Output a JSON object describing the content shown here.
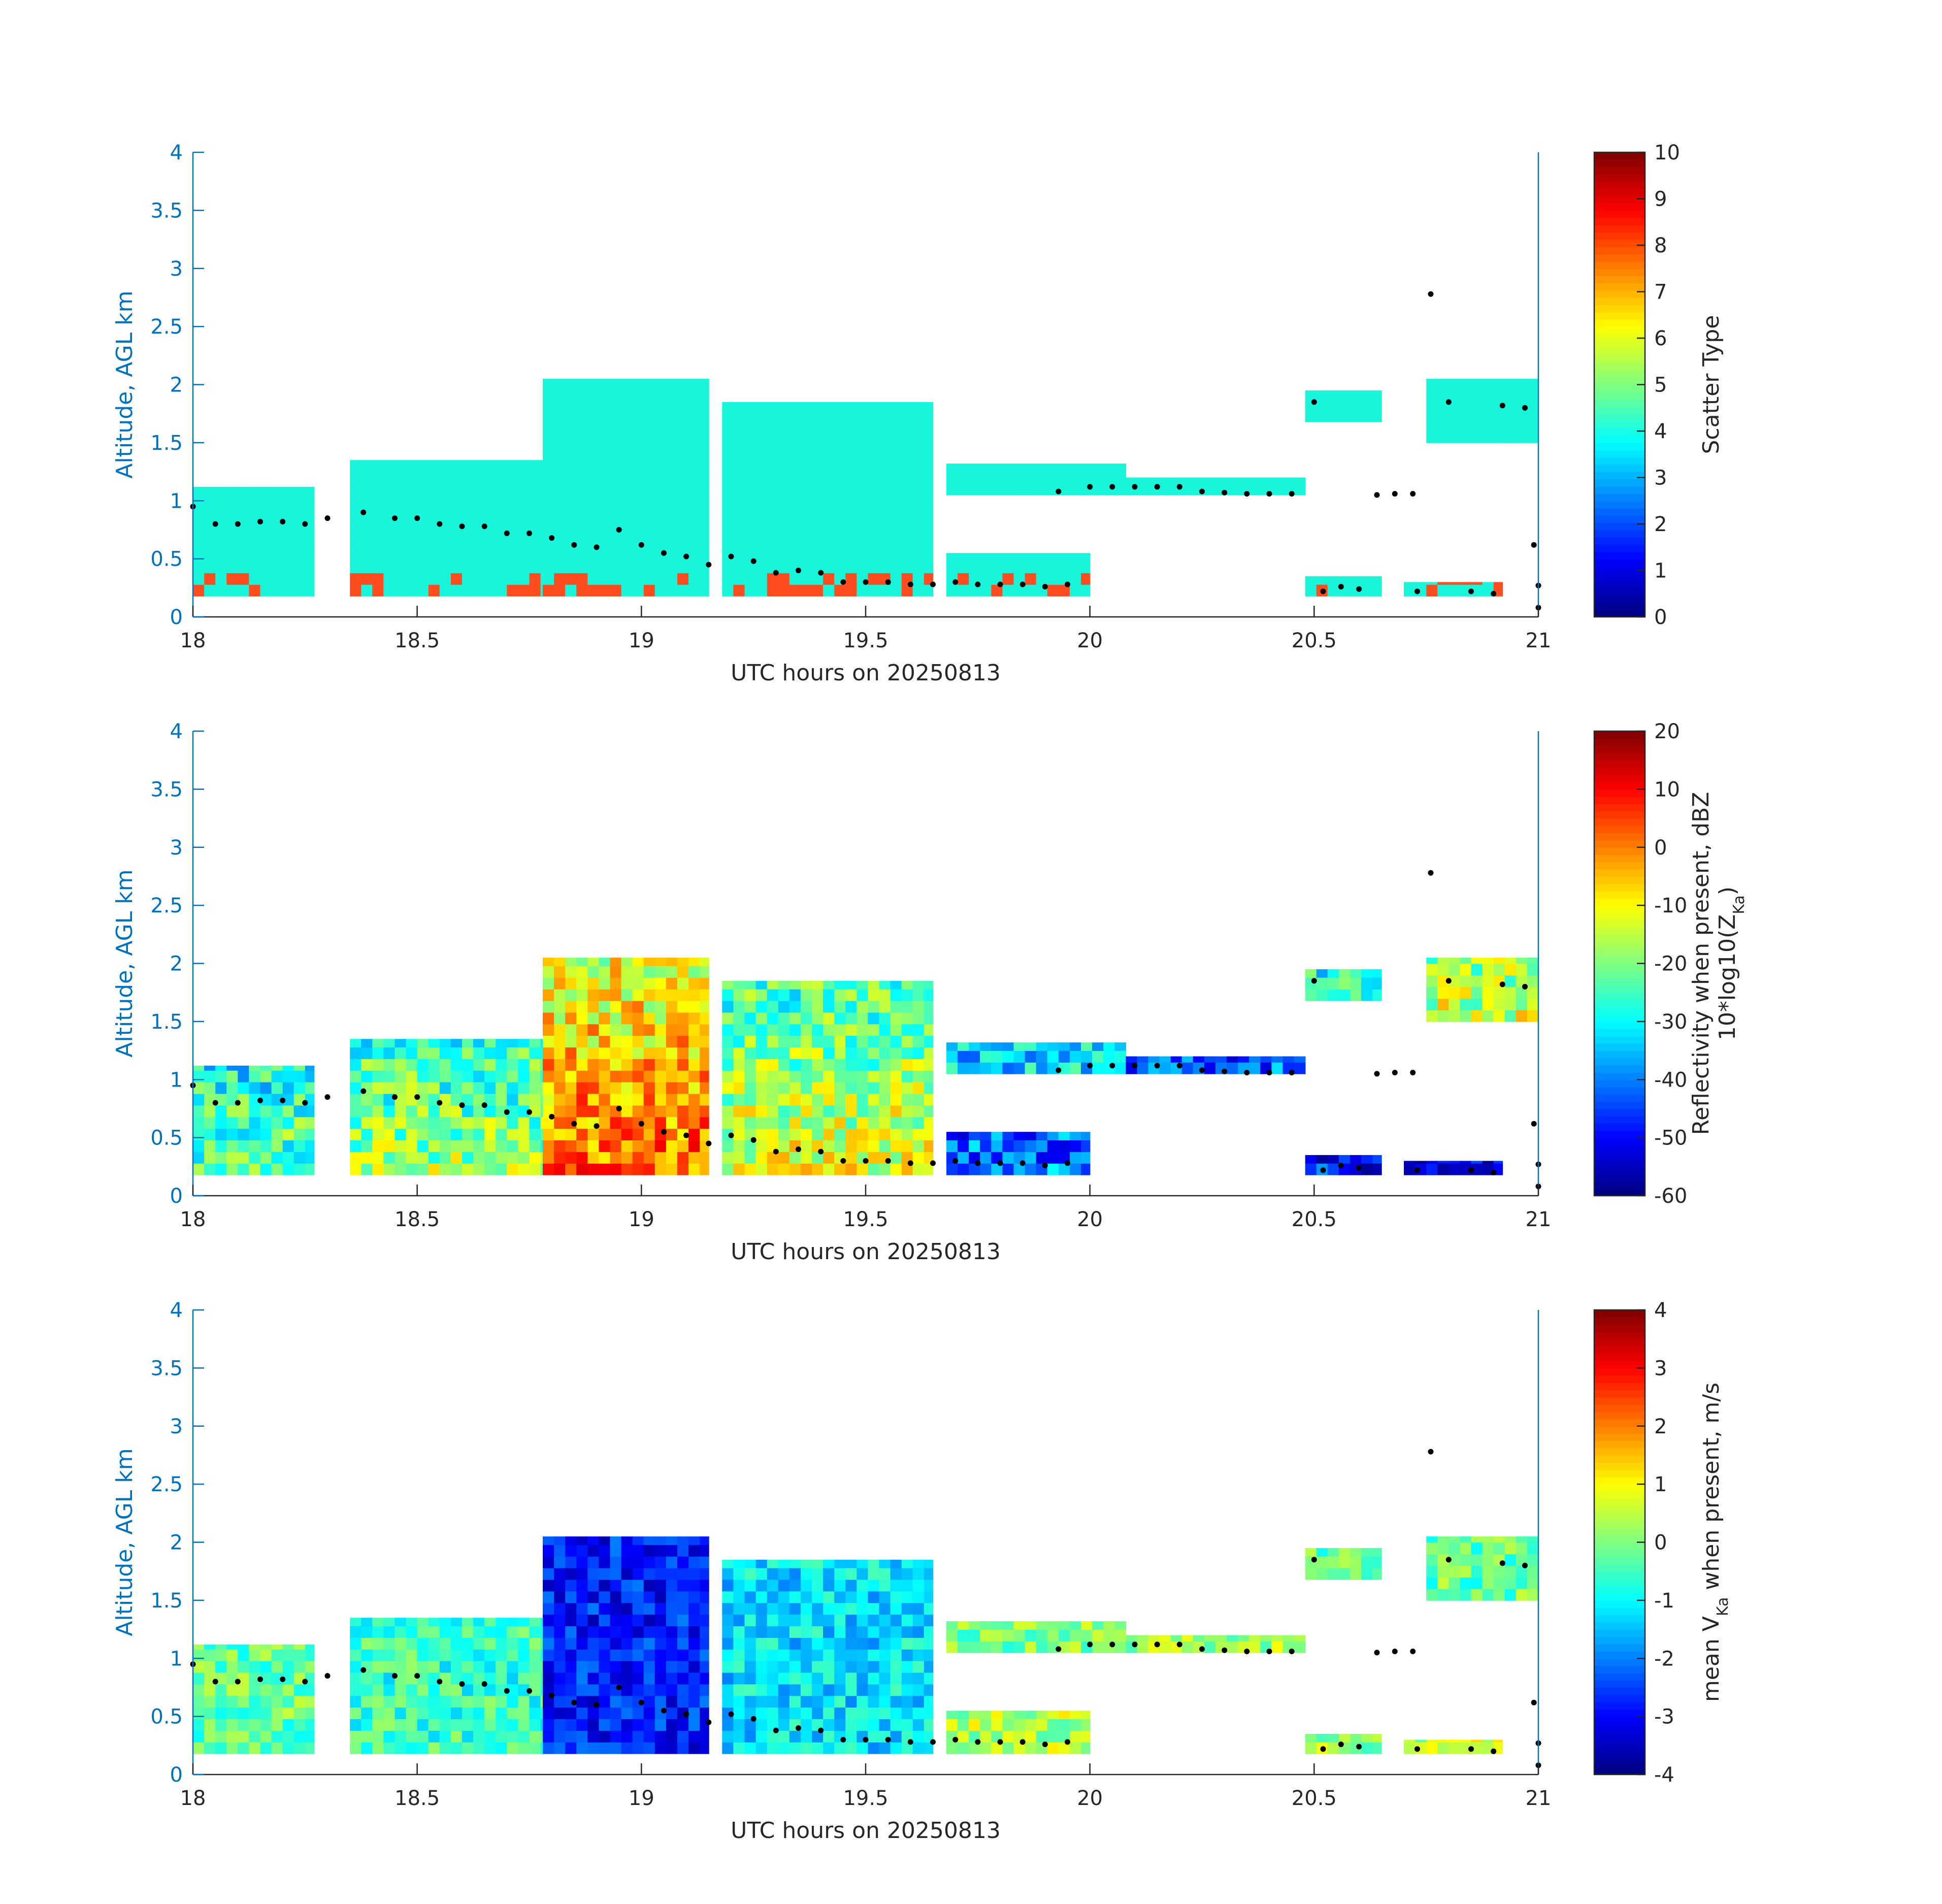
{
  "colors": {
    "left_axis": "#0072BD",
    "box": "#262626",
    "text": "#262626",
    "dots": "#000000",
    "cloud": "#19F5DA",
    "precip": "#FF4D1F"
  },
  "colormap": "jet",
  "chart_data": [
    {
      "type": "heatmap",
      "name_key": "scatter-type",
      "xlabel": "UTC hours on 20250813",
      "ylabel": "Altitude, AGL km",
      "colorbar_label_lines": [
        "Scatter Type"
      ],
      "xlim": [
        18,
        21
      ],
      "ylim": [
        0,
        4
      ],
      "xticks": [
        "18",
        "18.5",
        "19",
        "19.5",
        "20",
        "20.5",
        "21"
      ],
      "yticks": [
        "0",
        "0.5",
        "1",
        "1.5",
        "2",
        "2.5",
        "3",
        "3.5",
        "4"
      ],
      "clim": [
        0,
        10
      ],
      "cticks": [
        "0",
        "1",
        "2",
        "3",
        "4",
        "5",
        "6",
        "7",
        "8",
        "9",
        "10"
      ]
    },
    {
      "type": "heatmap",
      "name_key": "reflectivity",
      "xlabel": "UTC hours on 20250813",
      "ylabel": "Altitude, AGL km",
      "colorbar_label_lines": [
        "Reflectivity when present, dBZ",
        "10*log10(Z_Ka)"
      ],
      "xlim": [
        18,
        21
      ],
      "ylim": [
        0,
        4
      ],
      "xticks": [
        "18",
        "18.5",
        "19",
        "19.5",
        "20",
        "20.5",
        "21"
      ],
      "yticks": [
        "0",
        "0.5",
        "1",
        "1.5",
        "2",
        "2.5",
        "3",
        "3.5",
        "4"
      ],
      "clim": [
        -60,
        20
      ],
      "cticks": [
        "-60",
        "-50",
        "-40",
        "-30",
        "-20",
        "-10",
        "0",
        "10",
        "20"
      ]
    },
    {
      "type": "heatmap",
      "name_key": "velocity",
      "xlabel": "UTC hours on 20250813",
      "ylabel": "Altitude, AGL km",
      "colorbar_label_lines": [
        "mean V_Ka when present, m/s"
      ],
      "xlim": [
        18,
        21
      ],
      "ylim": [
        0,
        4
      ],
      "xticks": [
        "18",
        "18.5",
        "19",
        "19.5",
        "20",
        "20.5",
        "21"
      ],
      "yticks": [
        "0",
        "0.5",
        "1",
        "1.5",
        "2",
        "2.5",
        "3",
        "3.5",
        "4"
      ],
      "clim": [
        -4,
        4
      ],
      "cticks": [
        "-4",
        "-3",
        "-2",
        "-1",
        "0",
        "1",
        "2",
        "3",
        "4"
      ]
    }
  ],
  "echo_regions": [
    {
      "x0": 18.0,
      "x1": 18.27,
      "y0": 0.18,
      "y1": 1.12,
      "z": -22,
      "v": -0.2
    },
    {
      "x0": 18.35,
      "x1": 18.78,
      "y0": 0.18,
      "y1": 1.35,
      "z": -18,
      "v": -0.6
    },
    {
      "x0": 18.78,
      "x1": 19.15,
      "y0": 0.18,
      "y1": 2.05,
      "z": 2,
      "v": -2.8
    },
    {
      "x0": 19.18,
      "x1": 19.65,
      "y0": 0.18,
      "y1": 1.85,
      "z": -12,
      "v": -1.2
    },
    {
      "x0": 19.68,
      "x1": 20.0,
      "y0": 0.18,
      "y1": 0.55,
      "z": -40,
      "v": 0.4
    },
    {
      "x0": 19.68,
      "x1": 20.08,
      "y0": 1.05,
      "y1": 1.32,
      "z": -32,
      "v": 0.0
    },
    {
      "x0": 20.08,
      "x1": 20.48,
      "y0": 1.05,
      "y1": 1.2,
      "z": -42,
      "v": 0.3
    },
    {
      "x0": 20.48,
      "x1": 20.65,
      "y0": 1.68,
      "y1": 1.95,
      "z": -25,
      "v": -0.1
    },
    {
      "x0": 20.48,
      "x1": 20.65,
      "y0": 0.18,
      "y1": 0.35,
      "z": -48,
      "v": 0.2
    },
    {
      "x0": 20.7,
      "x1": 20.92,
      "y0": 0.18,
      "y1": 0.3,
      "z": -55,
      "v": 0.5
    },
    {
      "x0": 20.75,
      "x1": 21.0,
      "y0": 1.5,
      "y1": 2.05,
      "z": -14,
      "v": -0.2
    }
  ],
  "cloud_base": [
    {
      "x": 18.0,
      "y": 0.95
    },
    {
      "x": 18.05,
      "y": 0.8
    },
    {
      "x": 18.1,
      "y": 0.8
    },
    {
      "x": 18.15,
      "y": 0.82
    },
    {
      "x": 18.2,
      "y": 0.82
    },
    {
      "x": 18.25,
      "y": 0.8
    },
    {
      "x": 18.3,
      "y": 0.85
    },
    {
      "x": 18.38,
      "y": 0.9
    },
    {
      "x": 18.45,
      "y": 0.85
    },
    {
      "x": 18.5,
      "y": 0.85
    },
    {
      "x": 18.55,
      "y": 0.8
    },
    {
      "x": 18.6,
      "y": 0.78
    },
    {
      "x": 18.65,
      "y": 0.78
    },
    {
      "x": 18.7,
      "y": 0.72
    },
    {
      "x": 18.75,
      "y": 0.72
    },
    {
      "x": 18.8,
      "y": 0.68
    },
    {
      "x": 18.85,
      "y": 0.62
    },
    {
      "x": 18.9,
      "y": 0.6
    },
    {
      "x": 18.95,
      "y": 0.75
    },
    {
      "x": 19.0,
      "y": 0.62
    },
    {
      "x": 19.05,
      "y": 0.55
    },
    {
      "x": 19.1,
      "y": 0.52
    },
    {
      "x": 19.15,
      "y": 0.45
    },
    {
      "x": 19.2,
      "y": 0.52
    },
    {
      "x": 19.25,
      "y": 0.48
    },
    {
      "x": 19.3,
      "y": 0.38
    },
    {
      "x": 19.35,
      "y": 0.4
    },
    {
      "x": 19.4,
      "y": 0.38
    },
    {
      "x": 19.45,
      "y": 0.3
    },
    {
      "x": 19.5,
      "y": 0.3
    },
    {
      "x": 19.55,
      "y": 0.3
    },
    {
      "x": 19.6,
      "y": 0.28
    },
    {
      "x": 19.65,
      "y": 0.28
    },
    {
      "x": 19.7,
      "y": 0.3
    },
    {
      "x": 19.75,
      "y": 0.28
    },
    {
      "x": 19.8,
      "y": 0.28
    },
    {
      "x": 19.85,
      "y": 0.28
    },
    {
      "x": 19.9,
      "y": 0.26
    },
    {
      "x": 19.95,
      "y": 0.28
    },
    {
      "x": 19.93,
      "y": 1.08
    },
    {
      "x": 20.0,
      "y": 1.12
    },
    {
      "x": 20.05,
      "y": 1.12
    },
    {
      "x": 20.1,
      "y": 1.12
    },
    {
      "x": 20.15,
      "y": 1.12
    },
    {
      "x": 20.2,
      "y": 1.12
    },
    {
      "x": 20.25,
      "y": 1.08
    },
    {
      "x": 20.3,
      "y": 1.07
    },
    {
      "x": 20.35,
      "y": 1.06
    },
    {
      "x": 20.4,
      "y": 1.06
    },
    {
      "x": 20.45,
      "y": 1.06
    },
    {
      "x": 20.5,
      "y": 1.85
    },
    {
      "x": 20.52,
      "y": 0.22
    },
    {
      "x": 20.56,
      "y": 0.26
    },
    {
      "x": 20.6,
      "y": 0.24
    },
    {
      "x": 20.64,
      "y": 1.05
    },
    {
      "x": 20.68,
      "y": 1.06
    },
    {
      "x": 20.72,
      "y": 1.06
    },
    {
      "x": 20.73,
      "y": 0.22
    },
    {
      "x": 20.76,
      "y": 2.78
    },
    {
      "x": 20.8,
      "y": 1.85
    },
    {
      "x": 20.85,
      "y": 0.22
    },
    {
      "x": 20.9,
      "y": 0.2
    },
    {
      "x": 20.92,
      "y": 1.82
    },
    {
      "x": 20.97,
      "y": 1.8
    },
    {
      "x": 20.99,
      "y": 0.62
    },
    {
      "x": 21.0,
      "y": 0.27
    },
    {
      "x": 21.0,
      "y": 0.08
    }
  ]
}
